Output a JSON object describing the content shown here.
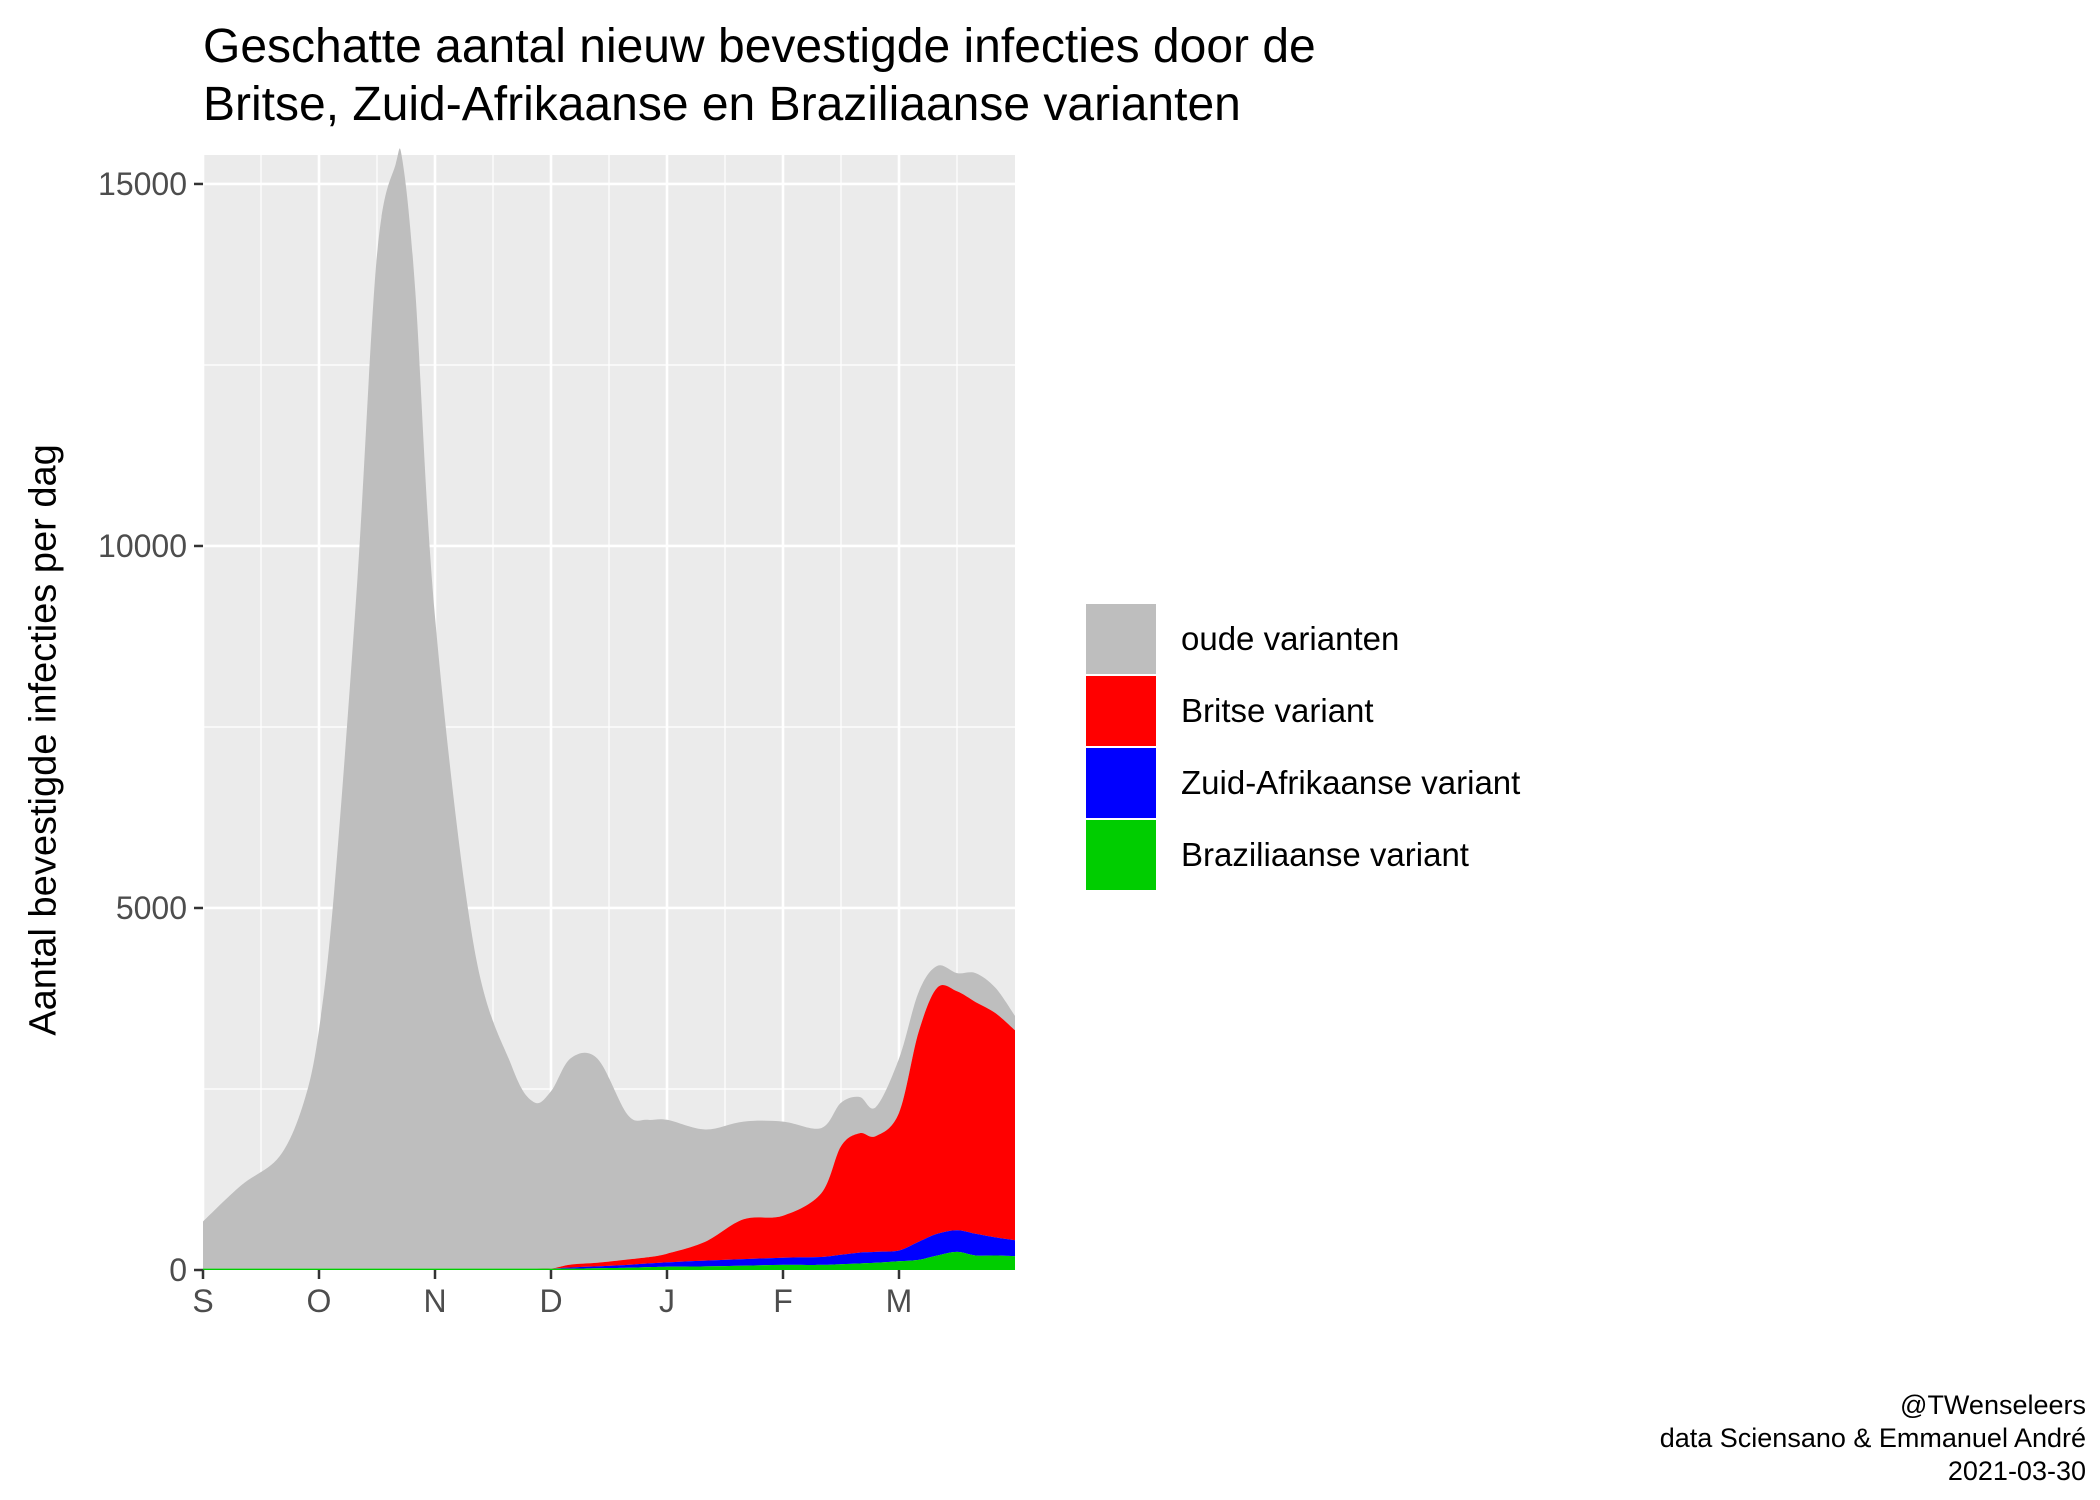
{
  "chart_data": {
    "type": "area",
    "stacked": true,
    "title_lines": [
      "Geschatte aantal nieuw bevestigde infecties door de",
      "Britse, Zuid-Afrikaanse en Braziliaanse varianten"
    ],
    "xlabel": "",
    "ylabel": "Aantal bevestigde infecties per dag",
    "x_ticks": [
      "S",
      "O",
      "N",
      "D",
      "J",
      "F",
      "M"
    ],
    "x_tick_positions": [
      0,
      1,
      2,
      3,
      4,
      5,
      6
    ],
    "xlim": [
      0,
      7
    ],
    "y_ticks": [
      0,
      5000,
      10000,
      15000
    ],
    "ylim": [
      0,
      15400
    ],
    "grid": true,
    "legend_position": "right",
    "x": [
      0,
      0.33,
      0.66,
      0.87,
      1.0,
      1.13,
      1.33,
      1.5,
      1.66,
      1.72,
      1.83,
      2.0,
      2.33,
      2.66,
      2.85,
      3.0,
      3.17,
      3.4,
      3.66,
      3.83,
      4.0,
      4.33,
      4.66,
      5.0,
      5.33,
      5.5,
      5.66,
      5.8,
      6.0,
      6.17,
      6.33,
      6.5,
      6.66,
      6.83,
      7.0
    ],
    "series": [
      {
        "name": "oude varianten",
        "color": "#BEBEBE",
        "values": [
          650,
          1150,
          1550,
          2300,
          3300,
          5200,
          9500,
          14000,
          15250,
          15300,
          13500,
          9000,
          4500,
          2800,
          2300,
          2450,
          2850,
          2820,
          2000,
          1900,
          1850,
          1550,
          1350,
          1300,
          900,
          600,
          500,
          400,
          750,
          550,
          300,
          250,
          400,
          350,
          200
        ]
      },
      {
        "name": "Britse variant",
        "color": "#FF0000",
        "values": [
          0,
          0,
          0,
          0,
          0,
          0,
          0,
          0,
          0,
          0,
          0,
          0,
          0,
          0,
          0,
          0,
          40,
          50,
          75,
          85,
          120,
          260,
          550,
          580,
          880,
          1500,
          1650,
          1600,
          1900,
          2900,
          3400,
          3300,
          3200,
          3100,
          2900
        ]
      },
      {
        "name": "Zuid-Afrikaanse variant",
        "color": "#0000FF",
        "values": [
          0,
          0,
          0,
          0,
          0,
          0,
          0,
          0,
          0,
          0,
          0,
          0,
          0,
          0,
          0,
          0,
          15,
          25,
          40,
          50,
          60,
          80,
          90,
          100,
          110,
          130,
          150,
          150,
          150,
          250,
          300,
          300,
          300,
          250,
          220
        ]
      },
      {
        "name": "Braziliaanse variant",
        "color": "#00CD00",
        "values": [
          20,
          20,
          20,
          20,
          20,
          20,
          20,
          20,
          20,
          20,
          20,
          20,
          20,
          20,
          20,
          20,
          20,
          25,
          30,
          40,
          45,
          50,
          60,
          70,
          70,
          80,
          90,
          100,
          120,
          140,
          200,
          250,
          200,
          200,
          190
        ]
      }
    ],
    "caption_lines": [
      "@TWenseleers",
      "data Sciensano & Emmanuel André",
      "2021-03-30"
    ]
  }
}
